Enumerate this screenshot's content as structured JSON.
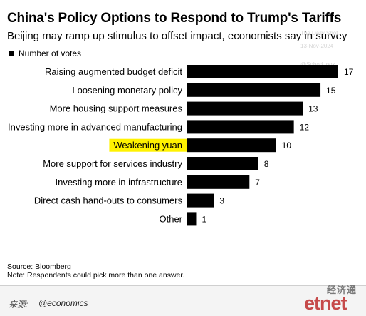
{
  "chart_data": {
    "type": "bar",
    "orientation": "horizontal",
    "title": "China's Policy Options to Respond to Trump's Tariffs",
    "subtitle": "Beijing may ramp up stimulus to offset impact, economists say in survey",
    "legend": "Number of votes",
    "categories": [
      "Raising augmented budget deficit",
      "Loosening monetary policy",
      "More housing support measures",
      "Investing more in advanced manufacturing",
      "Weakening yuan",
      "More support for services industry",
      "Investing more in infrastructure",
      "Direct cash hand-outs to consumers",
      "Other"
    ],
    "values": [
      17,
      15,
      13,
      12,
      10,
      8,
      7,
      3,
      1
    ],
    "highlighted": "Weakening yuan",
    "xlim": [
      0,
      17
    ],
    "grid": false,
    "source": "Source: Bloomberg",
    "note": "Note: Respondents could pick more than one answer.",
    "colors": {
      "bar": "#000000",
      "highlight": "#fff200"
    }
  },
  "watermark": {
    "line1": "The Daily Shot",
    "line2": "13-Nov-2024",
    "line3": "@Sobod_nok"
  },
  "footer": {
    "credit_label": "来源:",
    "credit_handle": "@economics",
    "brand_cn": "经济通",
    "brand_logo": "etnet"
  }
}
